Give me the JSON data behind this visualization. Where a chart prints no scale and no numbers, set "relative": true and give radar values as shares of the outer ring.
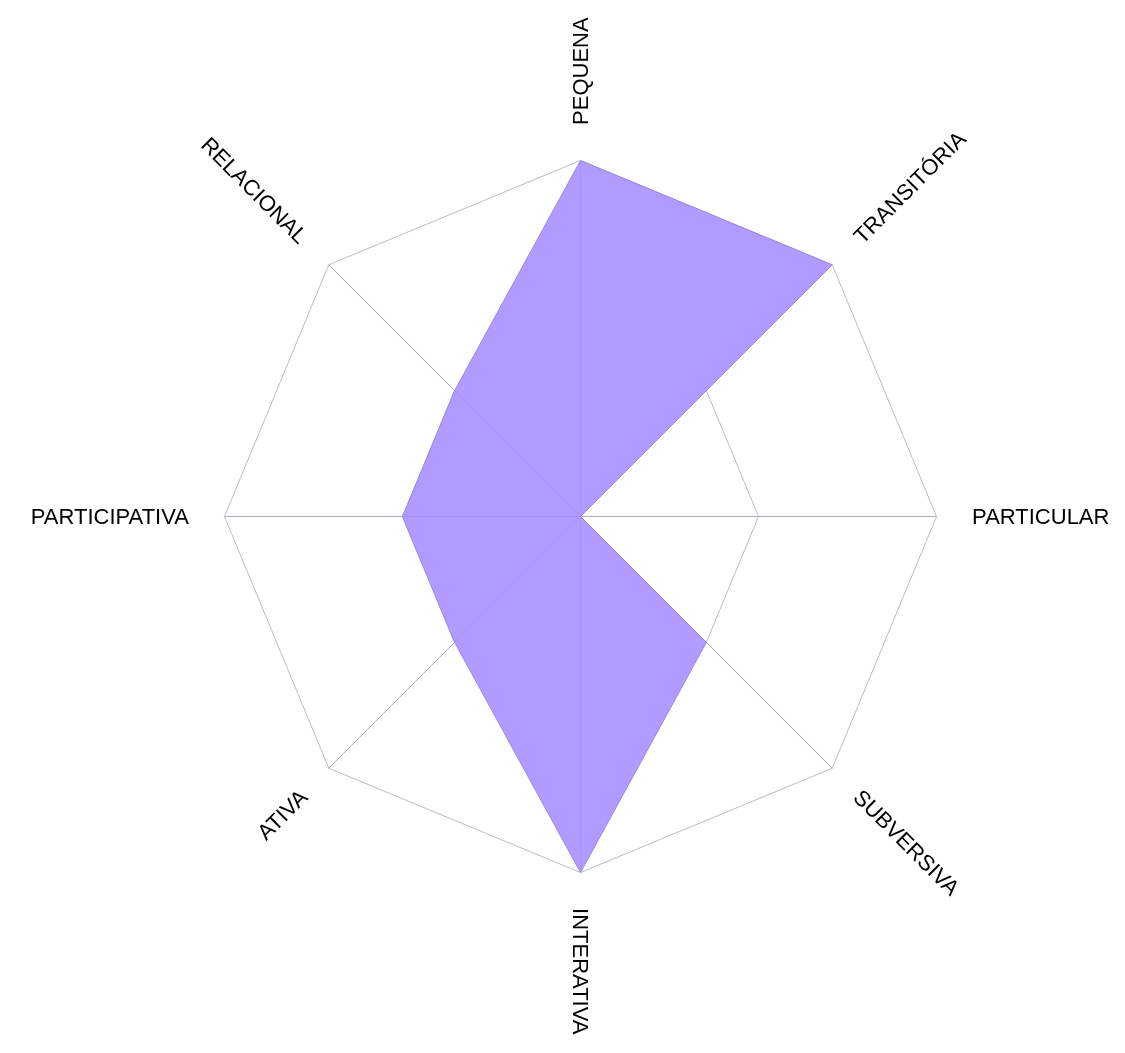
{
  "chart_data": {
    "type": "radar",
    "relative": true,
    "grid": true,
    "categories": [
      "PEQUENA",
      "TRANSITÓRIA",
      "PARTICULAR",
      "SUBVERSIVA",
      "INTERATIVA",
      "ATIVA",
      "PARTICIPATIVA",
      "RELACIONAL"
    ],
    "series": [
      {
        "color": "#b19bff",
        "values": [
          1,
          1,
          0,
          0.5,
          1,
          0.5,
          0.5,
          0.5
        ]
      }
    ]
  }
}
